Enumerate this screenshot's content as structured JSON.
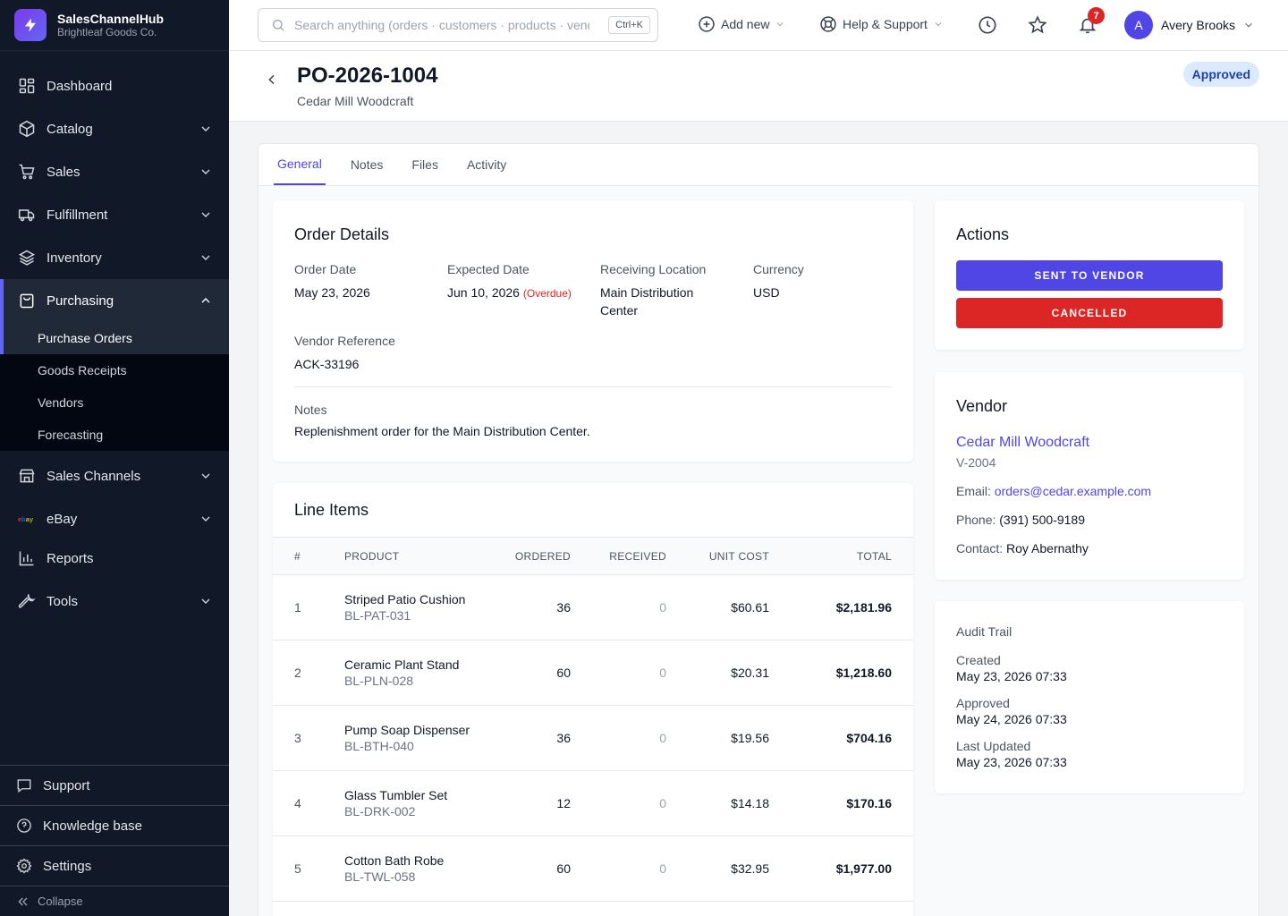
{
  "brand": {
    "name": "SalesChannelHub",
    "org": "Brightleaf Goods Co."
  },
  "sidebar": {
    "items": [
      {
        "label": "Dashboard"
      },
      {
        "label": "Catalog"
      },
      {
        "label": "Sales"
      },
      {
        "label": "Fulfillment"
      },
      {
        "label": "Inventory"
      },
      {
        "label": "Purchasing"
      },
      {
        "label": "Sales Channels"
      },
      {
        "label": "eBay"
      },
      {
        "label": "Reports"
      },
      {
        "label": "Tools"
      }
    ],
    "purchasing_sub": [
      {
        "label": "Purchase Orders"
      },
      {
        "label": "Goods Receipts"
      },
      {
        "label": "Vendors"
      },
      {
        "label": "Forecasting"
      }
    ],
    "bottom": [
      {
        "label": "Support"
      },
      {
        "label": "Knowledge base"
      },
      {
        "label": "Settings"
      }
    ],
    "collapse_label": "Collapse"
  },
  "topbar": {
    "search_placeholder": "Search anything (orders · customers · products · vendors)",
    "search_shortcut": "Ctrl+K",
    "add_new": "Add new",
    "help": "Help & Support",
    "notifications_count": "7",
    "user_initial": "A",
    "user_name": "Avery Brooks"
  },
  "header": {
    "po_number": "PO-2026-1004",
    "vendor_name": "Cedar Mill Woodcraft",
    "status": "Approved"
  },
  "tabs": [
    {
      "label": "General"
    },
    {
      "label": "Notes"
    },
    {
      "label": "Files"
    },
    {
      "label": "Activity"
    }
  ],
  "order_details": {
    "title": "Order Details",
    "order_date_label": "Order Date",
    "order_date": "May 23, 2026",
    "expected_date_label": "Expected Date",
    "expected_date": "Jun 10, 2026",
    "overdue": "(Overdue)",
    "location_label": "Receiving Location",
    "location": "Main Distribution Center",
    "currency_label": "Currency",
    "currency": "USD",
    "vendor_ref_label": "Vendor Reference",
    "vendor_ref": "ACK-33196",
    "notes_label": "Notes",
    "notes": "Replenishment order for the Main Distribution Center."
  },
  "line_items": {
    "title": "Line Items",
    "headers": [
      "#",
      "PRODUCT",
      "ORDERED",
      "RECEIVED",
      "UNIT COST",
      "TOTAL"
    ],
    "rows": [
      {
        "num": "1",
        "name": "Striped Patio Cushion",
        "sku": "BL-PAT-031",
        "ordered": "36",
        "received": "0",
        "unit_cost": "$60.61",
        "total": "$2,181.96"
      },
      {
        "num": "2",
        "name": "Ceramic Plant Stand",
        "sku": "BL-PLN-028",
        "ordered": "60",
        "received": "0",
        "unit_cost": "$20.31",
        "total": "$1,218.60"
      },
      {
        "num": "3",
        "name": "Pump Soap Dispenser",
        "sku": "BL-BTH-040",
        "ordered": "36",
        "received": "0",
        "unit_cost": "$19.56",
        "total": "$704.16"
      },
      {
        "num": "4",
        "name": "Glass Tumbler Set",
        "sku": "BL-DRK-002",
        "ordered": "12",
        "received": "0",
        "unit_cost": "$14.18",
        "total": "$170.16"
      },
      {
        "num": "5",
        "name": "Cotton Bath Robe",
        "sku": "BL-TWL-058",
        "ordered": "60",
        "received": "0",
        "unit_cost": "$32.95",
        "total": "$1,977.00"
      }
    ]
  },
  "actions": {
    "title": "Actions",
    "sent_to_vendor": "SENT TO VENDOR",
    "cancelled": "CANCELLED"
  },
  "vendor": {
    "title": "Vendor",
    "name": "Cedar Mill Woodcraft",
    "code": "V-2004",
    "email_label": "Email:",
    "email": "orders@cedar.example.com",
    "phone_label": "Phone:",
    "phone": "(391) 500-9189",
    "contact_label": "Contact:",
    "contact": "Roy Abernathy"
  },
  "audit": {
    "title": "Audit Trail",
    "created_label": "Created",
    "created": "May 23, 2026 07:33",
    "approved_label": "Approved",
    "approved": "May 24, 2026 07:33",
    "updated_label": "Last Updated",
    "updated": "May 23, 2026 07:33"
  },
  "colors": {
    "sidebar_bg": "#111827",
    "accent": "#4f46e5",
    "danger": "#dc2626",
    "status_bg": "#dbeafe",
    "status_text": "#1e40af"
  }
}
